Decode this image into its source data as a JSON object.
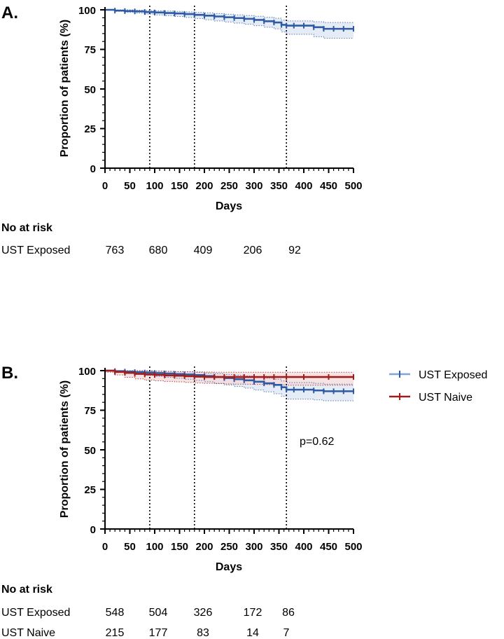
{
  "figure": {
    "colors": {
      "exposed": "#2e5aa3",
      "exposed_band": "#dde6f3",
      "naive": "#a11d1d",
      "naive_band": "#f3dada",
      "axis": "#000000",
      "reference_line": "#000000"
    }
  },
  "chart_data": [
    {
      "type": "line",
      "panel_label": "A.",
      "title": "",
      "xlabel": "Days",
      "ylabel": "Proportion of patients (%)",
      "xlim": [
        0,
        500
      ],
      "ylim": [
        0,
        100
      ],
      "xticks": [
        "0",
        "50",
        "100",
        "150",
        "200",
        "250",
        "300",
        "350",
        "400",
        "450",
        "500"
      ],
      "yticks": [
        "0",
        "25",
        "50",
        "75",
        "100"
      ],
      "reference_lines_x": [
        90,
        180,
        365
      ],
      "series": [
        {
          "name": "UST Exposed",
          "color_key": "exposed",
          "x": [
            0,
            20,
            40,
            60,
            80,
            100,
            120,
            140,
            160,
            180,
            200,
            220,
            240,
            260,
            280,
            300,
            320,
            340,
            355,
            365,
            380,
            400,
            420,
            440,
            460,
            480,
            500
          ],
          "y": [
            100,
            99.5,
            99.2,
            99,
            98.6,
            98.3,
            98,
            97.7,
            97.3,
            96.8,
            96.3,
            95.8,
            95.3,
            94.8,
            94.3,
            93.6,
            92.8,
            92,
            90.5,
            90,
            90,
            90,
            89,
            88,
            88,
            88,
            88
          ],
          "lower": [
            99.8,
            99,
            98.4,
            98,
            97.3,
            96.8,
            96.3,
            95.8,
            95.2,
            94.5,
            93.7,
            93,
            92.3,
            91.6,
            90.9,
            90,
            89,
            88,
            86,
            84.5,
            84.5,
            84.5,
            83,
            82,
            82,
            82,
            82
          ],
          "upper": [
            100,
            100,
            100,
            99.8,
            99.6,
            99.4,
            99.2,
            99,
            98.7,
            98.4,
            98,
            97.6,
            97.2,
            96.8,
            96.4,
            95.9,
            95.3,
            94.7,
            93.5,
            93,
            93,
            93,
            92.5,
            92,
            92,
            92,
            92
          ]
        }
      ],
      "risk_table": {
        "title": "No at risk",
        "rows": [
          {
            "label": "UST Exposed",
            "values": [
              "763",
              "680",
              "409",
              "206",
              "92"
            ]
          }
        ]
      }
    },
    {
      "type": "line",
      "panel_label": "B.",
      "title": "",
      "xlabel": "Days",
      "ylabel": "Proportion of patients (%)",
      "xlim": [
        0,
        500
      ],
      "ylim": [
        0,
        100
      ],
      "xticks": [
        "0",
        "50",
        "100",
        "150",
        "200",
        "250",
        "300",
        "350",
        "400",
        "450",
        "500"
      ],
      "yticks": [
        "0",
        "25",
        "50",
        "75",
        "100"
      ],
      "reference_lines_x": [
        90,
        180,
        365
      ],
      "annotation": "p=0.62",
      "legend": [
        "UST Exposed",
        "UST Naive"
      ],
      "series": [
        {
          "name": "UST Exposed",
          "color_key": "exposed",
          "x": [
            0,
            20,
            40,
            60,
            80,
            100,
            120,
            140,
            160,
            180,
            200,
            220,
            240,
            260,
            280,
            300,
            320,
            340,
            355,
            365,
            380,
            400,
            420,
            440,
            460,
            480,
            500
          ],
          "y": [
            100,
            99.7,
            99.4,
            99.1,
            98.8,
            98.5,
            98.2,
            97.9,
            97.6,
            97.2,
            96.6,
            96,
            95.3,
            94.6,
            93.9,
            93,
            92,
            91,
            89.5,
            88,
            88,
            88,
            87.5,
            87,
            87,
            87,
            87
          ],
          "lower": [
            99.6,
            99,
            98.3,
            97.6,
            97,
            96.4,
            95.8,
            95.2,
            94.6,
            93.8,
            93,
            92,
            91,
            90,
            89,
            87.8,
            86.6,
            85.4,
            83.8,
            82,
            82,
            82,
            81.5,
            81,
            81,
            81,
            81
          ],
          "upper": [
            100,
            100,
            100,
            100,
            100,
            99.8,
            99.6,
            99.4,
            99.2,
            98.9,
            98.5,
            98.1,
            97.6,
            97.1,
            96.6,
            96,
            95.3,
            94.6,
            93.5,
            92.5,
            92.5,
            92.5,
            92,
            91.5,
            91.5,
            91.5,
            91.5
          ]
        },
        {
          "name": "UST Naive",
          "color_key": "naive",
          "x": [
            0,
            20,
            40,
            60,
            80,
            100,
            120,
            140,
            160,
            180,
            200,
            220,
            240,
            260,
            280,
            300,
            320,
            340,
            365,
            400,
            450,
            500
          ],
          "y": [
            100,
            99.2,
            98.6,
            98,
            97.6,
            97.3,
            97,
            96.8,
            96.5,
            96.2,
            96,
            96,
            96,
            96,
            96,
            96,
            96,
            96,
            96,
            96,
            96,
            96
          ],
          "lower": [
            99,
            97.3,
            95.8,
            94.8,
            94,
            93.6,
            93.2,
            92.9,
            92.6,
            92.2,
            92,
            91.8,
            91.6,
            91.5,
            91.4,
            91.3,
            91.2,
            91,
            90.8,
            90.8,
            90.8,
            90.8
          ],
          "upper": [
            100,
            100,
            100,
            100,
            99.8,
            99.6,
            99.5,
            99.4,
            99.3,
            99.2,
            99.1,
            99,
            99,
            99,
            99,
            99,
            99,
            99,
            99,
            99,
            99,
            99
          ]
        }
      ],
      "risk_table": {
        "title": "No at risk",
        "rows": [
          {
            "label": "UST Exposed",
            "values": [
              "548",
              "504",
              "326",
              "172",
              "86"
            ]
          },
          {
            "label": "UST Naive",
            "values": [
              "215",
              "177",
              "83",
              "14",
              "7"
            ]
          }
        ]
      }
    }
  ]
}
